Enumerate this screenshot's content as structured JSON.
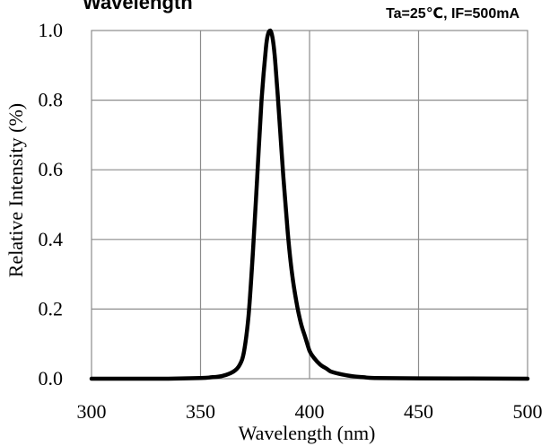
{
  "chart_data": {
    "type": "line",
    "title": "Wavelength",
    "condition": "Ta=25℃, IF=500mA",
    "xlabel": "Wavelength (nm)",
    "ylabel": "Relative Intensity (%)",
    "xlim": [
      300,
      500
    ],
    "ylim": [
      0,
      1
    ],
    "x_ticks": [
      "300",
      "350",
      "400",
      "450",
      "500"
    ],
    "y_ticks": [
      "0.0",
      "0.2",
      "0.4",
      "0.6",
      "0.8",
      "1.0"
    ],
    "grid": true,
    "legend": "none",
    "colors": {
      "line": "#000000",
      "grid": "#8c8c8c"
    },
    "series": [
      {
        "x": [
          300,
          330,
          350,
          355,
          360,
          365,
          368,
          370,
          372,
          374,
          376,
          378,
          380,
          381,
          382,
          383,
          384,
          385,
          386,
          388,
          390,
          392,
          394,
          396,
          398,
          400,
          402,
          405,
          408,
          410,
          415,
          420,
          425,
          430,
          450,
          500
        ],
        "values": [
          0,
          0,
          0.002,
          0.004,
          0.008,
          0.02,
          0.04,
          0.08,
          0.18,
          0.36,
          0.58,
          0.8,
          0.95,
          0.99,
          1.0,
          0.98,
          0.93,
          0.85,
          0.76,
          0.58,
          0.42,
          0.3,
          0.22,
          0.16,
          0.12,
          0.08,
          0.06,
          0.04,
          0.028,
          0.02,
          0.012,
          0.007,
          0.004,
          0.002,
          0.001,
          0
        ]
      }
    ]
  }
}
